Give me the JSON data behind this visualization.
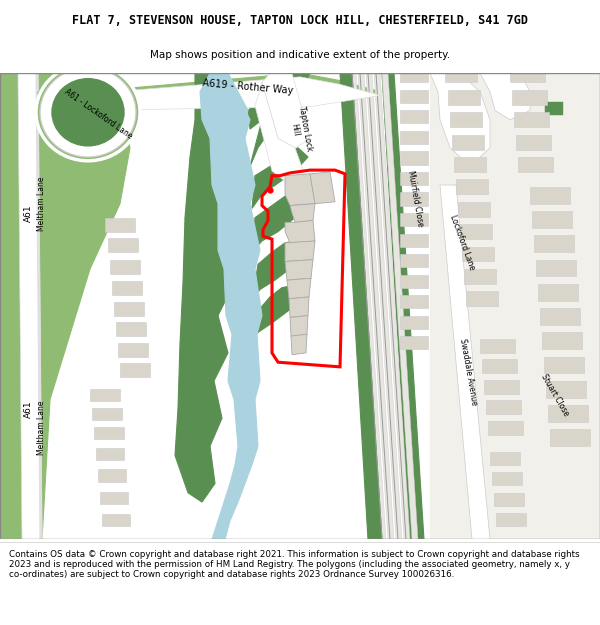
{
  "title": "FLAT 7, STEVENSON HOUSE, TAPTON LOCK HILL, CHESTERFIELD, S41 7GD",
  "subtitle": "Map shows position and indicative extent of the property.",
  "footer": "Contains OS data © Crown copyright and database right 2021. This information is subject to Crown copyright and database rights 2023 and is reproduced with the permission of HM Land Registry. The polygons (including the associated geometry, namely x, y co-ordinates) are subject to Crown copyright and database rights 2023 Ordnance Survey 100026316.",
  "bg": "#f2f0eb",
  "white": "#ffffff",
  "green": "#8fbc72",
  "dkgreen": "#5a8f52",
  "blue": "#aad3df",
  "bld": "#d9d5ca",
  "road_bg": "#f5f5f5",
  "red": "#ff0000",
  "line": "#bbbbbb",
  "rail_line": "#888888"
}
